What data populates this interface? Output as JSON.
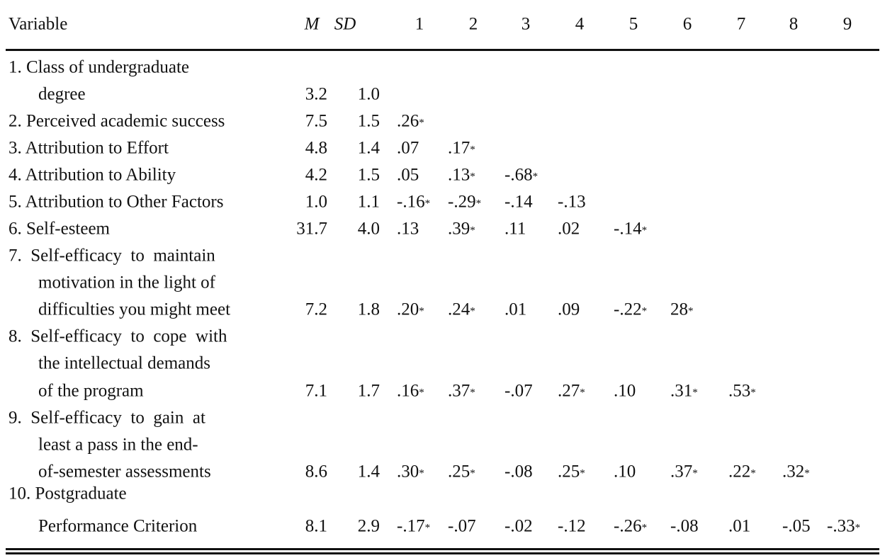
{
  "table": {
    "header": [
      "Variable",
      "M",
      "SD",
      "1",
      "2",
      "3",
      "4",
      "5",
      "6",
      "7",
      "8",
      "9"
    ],
    "rows": [
      {
        "variable": [
          "1. Class of undergraduate",
          "degree"
        ],
        "M": "3.2",
        "SD": "1.0",
        "r": []
      },
      {
        "variable": [
          "2. Perceived academic success"
        ],
        "M": "7.5",
        "SD": "1.5",
        "r": [
          ".26*"
        ]
      },
      {
        "variable": [
          "3. Attribution to Effort"
        ],
        "M": "4.8",
        "SD": "1.4",
        "r": [
          ".07",
          ".17*"
        ]
      },
      {
        "variable": [
          "4. Attribution to Ability"
        ],
        "M": "4.2",
        "SD": "1.5",
        "r": [
          ".05",
          ".13*",
          "-.68*"
        ]
      },
      {
        "variable": [
          "5. Attribution to Other Factors"
        ],
        "M": "1.0",
        "SD": "1.1",
        "r": [
          "-.16*",
          "-.29*",
          "-.14",
          "-.13"
        ]
      },
      {
        "variable": [
          "6. Self-esteem"
        ],
        "M": "31.7",
        "SD": "4.0",
        "r": [
          ".13",
          ".39*",
          ".11",
          ".02",
          "-.14*"
        ]
      },
      {
        "variable": [
          "7.  Self-efficacy  to  maintain",
          "motivation in the light of",
          "difficulties you might meet"
        ],
        "M": "7.2",
        "SD": "1.8",
        "r": [
          ".20*",
          ".24*",
          ".01",
          ".09",
          "-.22*",
          "28*"
        ]
      },
      {
        "variable": [
          "8.  Self-efficacy  to  cope  with",
          "the intellectual demands",
          "of the program"
        ],
        "M": "7.1",
        "SD": "1.7",
        "r": [
          ".16*",
          ".37*",
          "-.07",
          ".27*",
          ".10",
          ".31*",
          ".53*"
        ]
      },
      {
        "variable": [
          "9.  Self-efficacy  to  gain  at",
          "least a pass in the end-",
          "of-semester assessments"
        ],
        "M": "8.6",
        "SD": "1.4",
        "r": [
          ".30*",
          ".25*",
          "-.08",
          ".25*",
          ".10",
          ".37*",
          ".22*",
          ".32*"
        ]
      },
      {
        "variable": [
          "10. Postgraduate",
          "Performance Criterion"
        ],
        "M": "8.1",
        "SD": "2.9",
        "r": [
          "-.17*",
          "-.07",
          "-.02",
          "-.12",
          "-.26*",
          "-.08",
          ".01",
          "-.05",
          "-.33*"
        ]
      }
    ]
  }
}
